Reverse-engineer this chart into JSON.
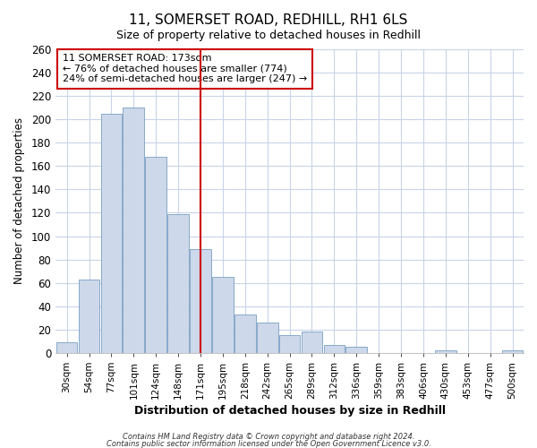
{
  "title": "11, SOMERSET ROAD, REDHILL, RH1 6LS",
  "subtitle": "Size of property relative to detached houses in Redhill",
  "xlabel": "Distribution of detached houses by size in Redhill",
  "ylabel": "Number of detached properties",
  "bin_labels": [
    "30sqm",
    "54sqm",
    "77sqm",
    "101sqm",
    "124sqm",
    "148sqm",
    "171sqm",
    "195sqm",
    "218sqm",
    "242sqm",
    "265sqm",
    "289sqm",
    "312sqm",
    "336sqm",
    "359sqm",
    "383sqm",
    "406sqm",
    "430sqm",
    "453sqm",
    "477sqm",
    "500sqm"
  ],
  "bar_values": [
    9,
    63,
    205,
    210,
    168,
    119,
    89,
    65,
    33,
    26,
    15,
    18,
    7,
    5,
    0,
    0,
    0,
    2,
    0,
    0,
    2
  ],
  "bar_color": "#cdd8ea",
  "bar_edge_color": "#7a9fc2",
  "vline_x_index": 6,
  "vline_color": "#cc0000",
  "annotation_title": "11 SOMERSET ROAD: 173sqm",
  "annotation_line1": "← 76% of detached houses are smaller (774)",
  "annotation_line2": "24% of semi-detached houses are larger (247) →",
  "annotation_box_color": "#cc0000",
  "ylim": [
    0,
    260
  ],
  "yticks": [
    0,
    20,
    40,
    60,
    80,
    100,
    120,
    140,
    160,
    180,
    200,
    220,
    240,
    260
  ],
  "footer1": "Contains HM Land Registry data © Crown copyright and database right 2024.",
  "footer2": "Contains public sector information licensed under the Open Government Licence v3.0.",
  "bg_color": "#ffffff",
  "grid_color": "#c8d4e8"
}
